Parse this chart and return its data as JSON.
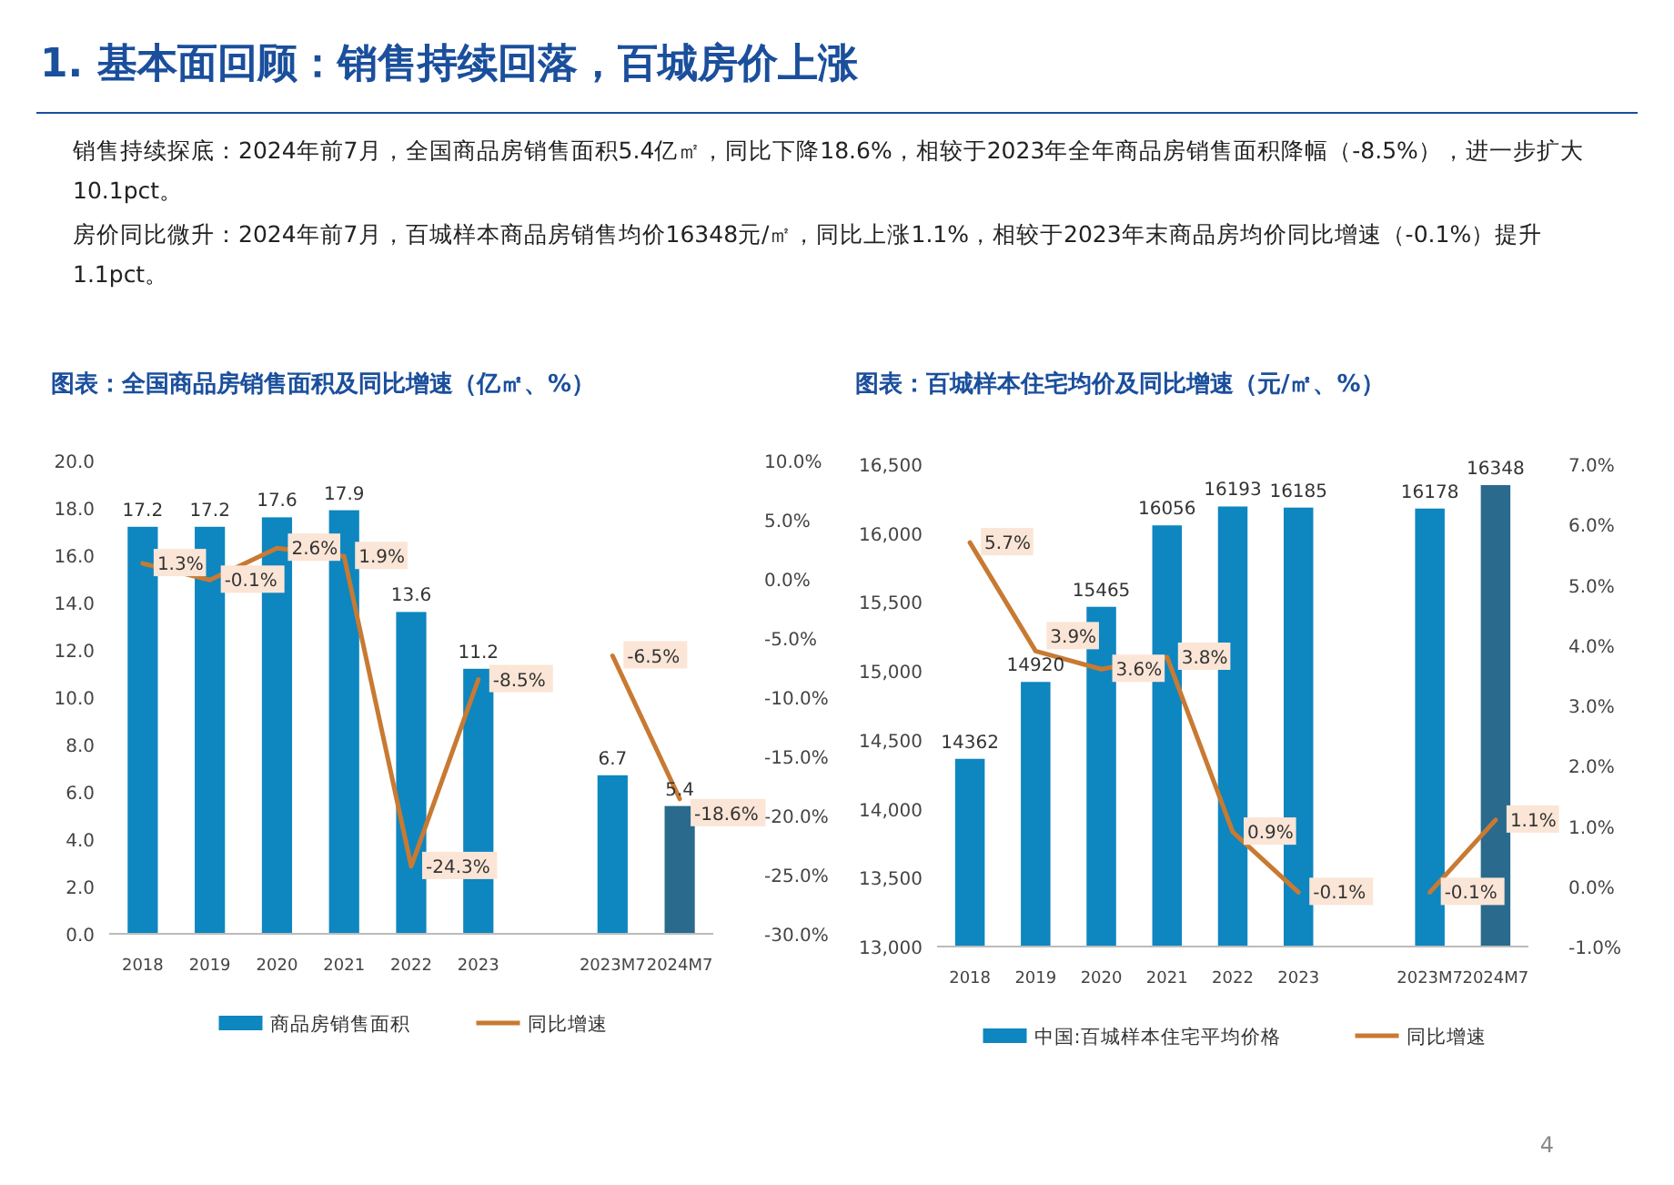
{
  "chart_data": [
    {
      "type": "bar",
      "title": "图表：全国商品房销售面积及同比增速（亿㎡、%）",
      "annotations": [
        "1. 基本面回顾：销售持续回落，百城房价上涨",
        "销售持续探底：2024年前7月，全国商品房销售面积5.4亿㎡，同比下降18.6%，相较于2023年全年商品房销售面积降幅（-8.5%），进一步扩大10.1pct。",
        "房价同比微升：2024年前7月，百城样本商品房销售均价16348元/㎡，同比上涨1.1%，相较于2023年末商品房均价同比增速（-0.1%）提升1.1pct。",
        "4"
      ],
      "categories": [
        "2018",
        "2019",
        "2020",
        "2021",
        "2022",
        "2023",
        null,
        "2023M7",
        "2024M7"
      ],
      "series": [
        {
          "name": "商品房销售面积",
          "color": "#0e86c0",
          "colors": [
            "#0e86c0",
            "#0e86c0",
            "#0e86c0",
            "#0e86c0",
            "#0e86c0",
            "#0e86c0",
            "#0e86c0",
            "#0e86c0",
            "#2a6a8c"
          ],
          "values": [
            17.2,
            17.2,
            17.6,
            17.9,
            13.6,
            11.2,
            null,
            6.7,
            5.4
          ],
          "value_labels": [
            "17.2",
            "17.2",
            "17.6",
            "17.9",
            "13.6",
            "11.2",
            null,
            "6.7",
            "5.4"
          ]
        },
        {
          "name": "同比增速",
          "type": "line",
          "axis": "y2",
          "color": "#c87a32",
          "values": [
            1.3,
            -0.1,
            2.6,
            1.9,
            -24.3,
            -8.5,
            null,
            -6.5,
            -18.6
          ],
          "value_labels": [
            "1.3%",
            "-0.1%",
            "2.6%",
            "1.9%",
            "-24.3%",
            "-8.5%",
            null,
            "-6.5%",
            "-18.6%"
          ]
        }
      ],
      "ylim": [
        0,
        20
      ],
      "yticks": [
        {
          "value": 0,
          "label": "0.0"
        },
        {
          "value": 2,
          "label": "2.0"
        },
        {
          "value": 4,
          "label": "4.0"
        },
        {
          "value": 6,
          "label": "6.0"
        },
        {
          "value": 8,
          "label": "8.0"
        },
        {
          "value": 10,
          "label": "10.0"
        },
        {
          "value": 12,
          "label": "12.0"
        },
        {
          "value": 14,
          "label": "14.0"
        },
        {
          "value": 16,
          "label": "16.0"
        },
        {
          "value": 18,
          "label": "18.0"
        },
        {
          "value": 20,
          "label": "20.0"
        }
      ],
      "y2lim": [
        -30,
        10
      ],
      "y2ticks": [
        {
          "value": -30,
          "label": "-30.0%"
        },
        {
          "value": -25,
          "label": "-25.0%"
        },
        {
          "value": -20,
          "label": "-20.0%"
        },
        {
          "value": -15,
          "label": "-15.0%"
        },
        {
          "value": -10,
          "label": "-10.0%"
        },
        {
          "value": -5,
          "label": "-5.0%"
        },
        {
          "value": 0,
          "label": "0.0%"
        },
        {
          "value": 5,
          "label": "5.0%"
        },
        {
          "value": 10,
          "label": "10.0%"
        }
      ],
      "legend": "bottom",
      "grid": false
    },
    {
      "type": "bar",
      "title": "图表：百城样本住宅均价及同比增速（元/㎡、%）",
      "categories": [
        "2018",
        "2019",
        "2020",
        "2021",
        "2022",
        "2023",
        null,
        "2023M7",
        "2024M7"
      ],
      "series": [
        {
          "name": "中国:百城样本住宅平均价格",
          "color": "#0e86c0",
          "colors": [
            "#0e86c0",
            "#0e86c0",
            "#0e86c0",
            "#0e86c0",
            "#0e86c0",
            "#0e86c0",
            "#0e86c0",
            "#0e86c0",
            "#2a6a8c"
          ],
          "values": [
            14362,
            14920,
            15465,
            16056,
            16193,
            16185,
            null,
            16178,
            16348
          ],
          "value_labels": [
            "14362",
            "14920",
            "15465",
            "16056",
            "16193",
            "16185",
            null,
            "16178",
            "16348"
          ]
        },
        {
          "name": "同比增速",
          "type": "line",
          "axis": "y2",
          "color": "#c87a32",
          "values": [
            5.7,
            3.9,
            3.6,
            3.8,
            0.9,
            -0.1,
            null,
            -0.1,
            1.1
          ],
          "value_labels": [
            "5.7%",
            "3.9%",
            "3.6%",
            "3.8%",
            "0.9%",
            "-0.1%",
            null,
            "-0.1%",
            "1.1%"
          ]
        }
      ],
      "ylim": [
        13000,
        16500
      ],
      "yticks": [
        {
          "value": 13000,
          "label": "13,000"
        },
        {
          "value": 13500,
          "label": "13,500"
        },
        {
          "value": 14000,
          "label": "14,000"
        },
        {
          "value": 14500,
          "label": "14,500"
        },
        {
          "value": 15000,
          "label": "15,000"
        },
        {
          "value": 15500,
          "label": "15,500"
        },
        {
          "value": 16000,
          "label": "16,000"
        },
        {
          "value": 16500,
          "label": "16,500"
        }
      ],
      "y2lim": [
        -1,
        7
      ],
      "y2ticks": [
        {
          "value": -1,
          "label": "-1.0%"
        },
        {
          "value": 0,
          "label": "0.0%"
        },
        {
          "value": 1,
          "label": "1.0%"
        },
        {
          "value": 2,
          "label": "2.0%"
        },
        {
          "value": 3,
          "label": "3.0%"
        },
        {
          "value": 4,
          "label": "4.0%"
        },
        {
          "value": 5,
          "label": "5.0%"
        },
        {
          "value": 6,
          "label": "6.0%"
        },
        {
          "value": 7,
          "label": "7.0%"
        }
      ],
      "legend": "bottom",
      "grid": false
    }
  ]
}
